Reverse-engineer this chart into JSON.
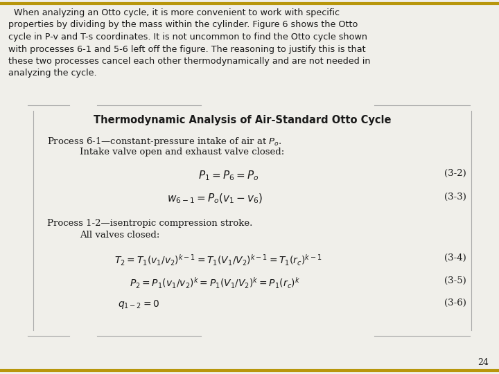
{
  "bg_color": "#f0efea",
  "border_color": "#b8960c",
  "page_number": "24",
  "paragraph_lines": [
    "  When analyzing an Otto cycle, it is more convenient to work with specific",
    "properties by dividing by the mass within the cylinder. Figure 6 shows the Otto",
    "cycle in P-v and T-s coordinates. It is not uncommon to find the Otto cycle shown",
    "with processes 6-1 and 5-6 left off the figure. The reasoning to justify this is that",
    "these two processes cancel each other thermodynamically and are not needed in",
    "analyzing the cycle."
  ],
  "box_title": "Thermodynamic Analysis of Air-Standard Otto Cycle",
  "process1_line1_plain": "Process 6-1",
  "process1_line1_rest": "—constant-pressure intake of air at ",
  "process1_line1_math": "$P_o$",
  "process1_line1_end": ".",
  "process1_line2": "Intake valve open and exhaust valve closed:",
  "eq1": "$P_1 = P_6 = P_o$",
  "eq1_num": "(3-2)",
  "eq2": "$w_{6-1} = P_o(v_1 - v_6)$",
  "eq2_num": "(3-3)",
  "process2_line1": "Process 1-2—isentropic compression stroke.",
  "process2_line2": "All valves closed:",
  "eq3": "$T_2 = T_1(v_1/v_2)^{k-1} = T_1(V_1/V_2)^{k-1} = T_1(r_c)^{k-1}$",
  "eq3_num": "(3-4)",
  "eq4": "$P_2 = P_1(v_1/v_2)^{k} = P_1(V_1/V_2)^{k} = P_1(r_c)^{k}$",
  "eq4_num": "(3-5)",
  "eq5": "$q_{1-2} = 0$",
  "eq5_num": "(3-6)",
  "text_color": "#1a1a1a",
  "box_line_color": "#aaaaaa",
  "left_bar_color": "#555555"
}
